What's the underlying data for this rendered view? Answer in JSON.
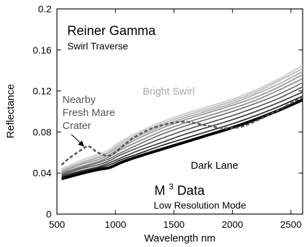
{
  "chart_data": {
    "type": "line",
    "title": "Reiner Gamma",
    "subtitle": "Swirl Traverse",
    "xlabel": "Wavelength nm",
    "ylabel": "Reflectance",
    "xlim": [
      500,
      2600
    ],
    "ylim": [
      0,
      0.2
    ],
    "xticks": [
      500,
      1000,
      1500,
      2000,
      2500
    ],
    "yticks": [
      0,
      0.04,
      0.08,
      0.12,
      0.16,
      0.2
    ],
    "xtick_labels": [
      "500",
      "1000",
      "1500",
      "2000",
      "2500"
    ],
    "ytick_labels": [
      "0",
      "0.04",
      "0.08",
      "0.12",
      "0.16",
      "0.2"
    ],
    "grid": false,
    "colors": {
      "bright": "#d0d0d0",
      "dark": "#000000",
      "crater": "#555555"
    },
    "annotations": {
      "bright_swirl": "Bright Swirl",
      "dark_lane": "Dark Lane",
      "crater_line1": "Nearby",
      "crater_line2": "Fresh Mare",
      "crater_line3": "Crater",
      "m3_main": "M",
      "m3_sup": "3",
      "m3_rest": " Data",
      "mode": "Low Resolution Mode"
    },
    "traverse_x": [
      540,
      700,
      850,
      950,
      1050,
      1200,
      1400,
      1600,
      1800,
      2000,
      2200,
      2400,
      2600
    ],
    "series": [
      {
        "values": [
          0.044,
          0.052,
          0.058,
          0.063,
          0.071,
          0.08,
          0.09,
          0.098,
          0.105,
          0.112,
          0.121,
          0.132,
          0.145
        ],
        "shade": 0.82,
        "width": 2.2
      },
      {
        "values": [
          0.043,
          0.05,
          0.056,
          0.061,
          0.069,
          0.078,
          0.088,
          0.096,
          0.103,
          0.11,
          0.119,
          0.13,
          0.142
        ],
        "shade": 0.76,
        "width": 2.2
      },
      {
        "values": [
          0.042,
          0.049,
          0.055,
          0.06,
          0.067,
          0.076,
          0.086,
          0.094,
          0.101,
          0.108,
          0.117,
          0.127,
          0.139
        ],
        "shade": 0.7,
        "width": 2.0
      },
      {
        "values": [
          0.041,
          0.048,
          0.053,
          0.058,
          0.065,
          0.074,
          0.084,
          0.092,
          0.099,
          0.106,
          0.114,
          0.124,
          0.136
        ],
        "shade": 0.62,
        "width": 2.0
      },
      {
        "values": [
          0.04,
          0.046,
          0.051,
          0.056,
          0.063,
          0.071,
          0.081,
          0.089,
          0.096,
          0.103,
          0.111,
          0.121,
          0.132
        ],
        "shade": 0.54,
        "width": 1.8
      },
      {
        "values": [
          0.039,
          0.045,
          0.05,
          0.054,
          0.06,
          0.068,
          0.078,
          0.086,
          0.093,
          0.1,
          0.108,
          0.117,
          0.128
        ],
        "shade": 0.45,
        "width": 1.8
      },
      {
        "values": [
          0.038,
          0.044,
          0.048,
          0.052,
          0.058,
          0.065,
          0.074,
          0.082,
          0.089,
          0.096,
          0.104,
          0.113,
          0.124
        ],
        "shade": 0.36,
        "width": 1.8
      },
      {
        "values": [
          0.037,
          0.042,
          0.046,
          0.05,
          0.055,
          0.062,
          0.07,
          0.078,
          0.085,
          0.092,
          0.1,
          0.109,
          0.119
        ],
        "shade": 0.26,
        "width": 1.8
      },
      {
        "values": [
          0.036,
          0.041,
          0.045,
          0.048,
          0.053,
          0.059,
          0.067,
          0.074,
          0.081,
          0.088,
          0.096,
          0.105,
          0.115
        ],
        "shade": 0.16,
        "width": 1.8
      },
      {
        "values": [
          0.035,
          0.04,
          0.044,
          0.046,
          0.051,
          0.057,
          0.064,
          0.071,
          0.078,
          0.085,
          0.093,
          0.102,
          0.112
        ],
        "shade": 0.06,
        "width": 2.4
      },
      {
        "values": [
          0.034,
          0.039,
          0.043,
          0.045,
          0.05,
          0.056,
          0.063,
          0.07,
          0.077,
          0.084,
          0.092,
          0.101,
          0.111
        ],
        "shade": 0.0,
        "width": 3.2
      }
    ],
    "crater": {
      "x": [
        540,
        600,
        700,
        770,
        850,
        950,
        1050,
        1150,
        1300,
        1450,
        1600,
        1750,
        1900,
        2000,
        2100,
        2300,
        2500,
        2600
      ],
      "values": [
        0.048,
        0.054,
        0.062,
        0.066,
        0.06,
        0.057,
        0.065,
        0.074,
        0.083,
        0.088,
        0.09,
        0.087,
        0.084,
        0.084,
        0.086,
        0.096,
        0.108,
        0.114
      ]
    }
  }
}
